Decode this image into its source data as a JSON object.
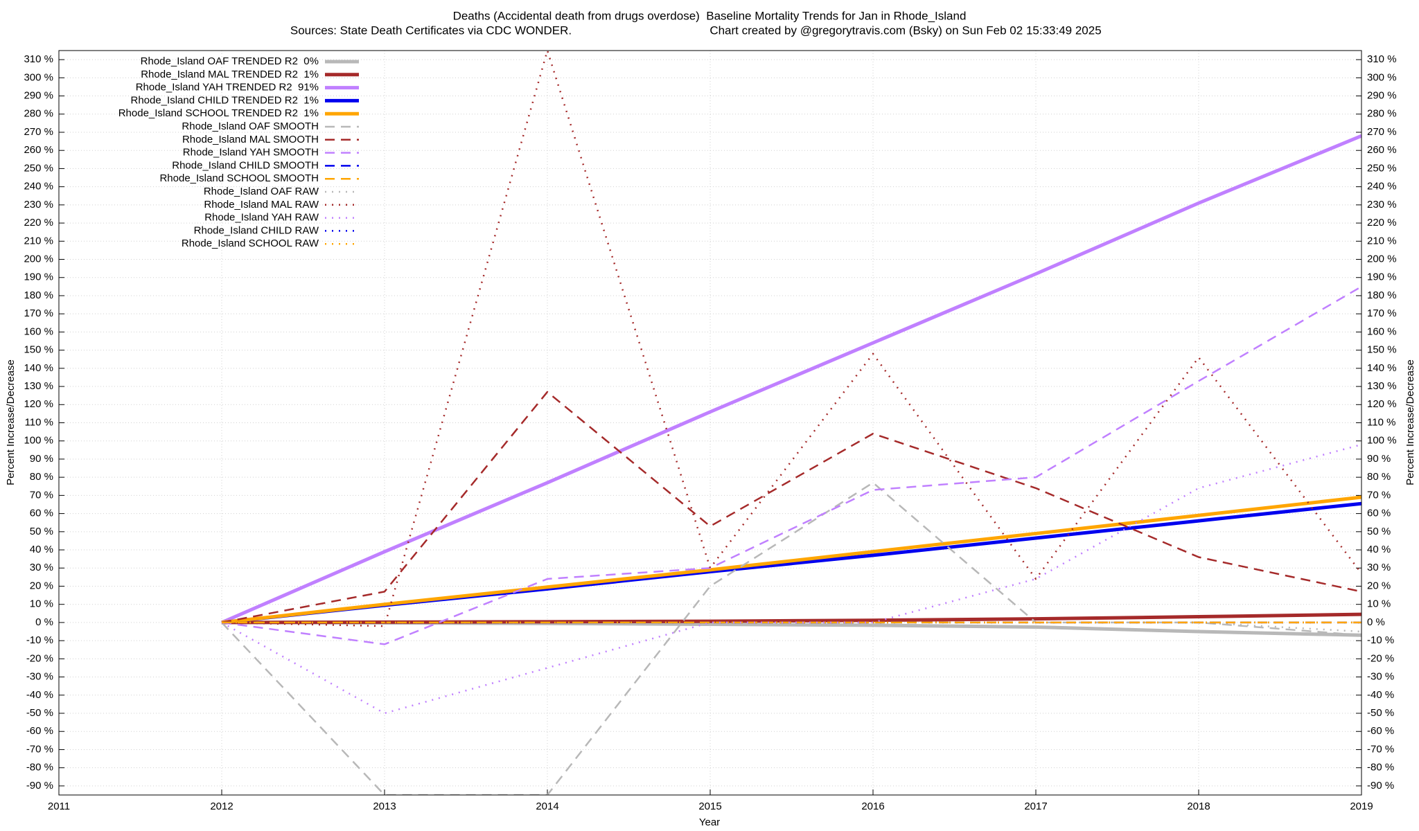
{
  "chart_data": {
    "type": "line",
    "title": "Deaths (Accidental death from drugs overdose)  Baseline Mortality Trends for Jan in Rhode_Island",
    "subtitle": "Sources: State Death Certificates via CDC WONDER.",
    "credit": "Chart created by @gregorytravis.com (Bsky) on Sun Feb 02 15:33:49 2025",
    "xlabel": "Year",
    "ylabel": "Percent Increase/Decrease",
    "y2label": "Percent Increase/Decrease",
    "x": [
      2012,
      2013,
      2014,
      2015,
      2016,
      2017,
      2018,
      2019
    ],
    "xlim": [
      2011,
      2019
    ],
    "xticks": [
      2011,
      2012,
      2013,
      2014,
      2015,
      2016,
      2017,
      2018,
      2019
    ],
    "ylim": [
      -95,
      315
    ],
    "yticks": [
      {
        "value": -90,
        "label": "-90 %"
      },
      {
        "value": -80,
        "label": "-80 %"
      },
      {
        "value": -70,
        "label": "-70 %"
      },
      {
        "value": -60,
        "label": "-60 %"
      },
      {
        "value": -50,
        "label": "-50 %"
      },
      {
        "value": -40,
        "label": "-40 %"
      },
      {
        "value": -30,
        "label": "-30 %"
      },
      {
        "value": -20,
        "label": "-20 %"
      },
      {
        "value": -10,
        "label": "-10 %"
      },
      {
        "value": 0,
        "label": "0 %"
      },
      {
        "value": 10,
        "label": "10 %"
      },
      {
        "value": 20,
        "label": "20 %"
      },
      {
        "value": 30,
        "label": "30 %"
      },
      {
        "value": 40,
        "label": "40 %"
      },
      {
        "value": 50,
        "label": "50 %"
      },
      {
        "value": 60,
        "label": "60 %"
      },
      {
        "value": 70,
        "label": "70 %"
      },
      {
        "value": 80,
        "label": "80 %"
      },
      {
        "value": 90,
        "label": "90 %"
      },
      {
        "value": 100,
        "label": "100 %"
      },
      {
        "value": 110,
        "label": "110 %"
      },
      {
        "value": 120,
        "label": "120 %"
      },
      {
        "value": 130,
        "label": "130 %"
      },
      {
        "value": 140,
        "label": "140 %"
      },
      {
        "value": 150,
        "label": "150 %"
      },
      {
        "value": 160,
        "label": "160 %"
      },
      {
        "value": 170,
        "label": "170 %"
      },
      {
        "value": 180,
        "label": "180 %"
      },
      {
        "value": 190,
        "label": "190 %"
      },
      {
        "value": 200,
        "label": "200 %"
      },
      {
        "value": 210,
        "label": "210 %"
      },
      {
        "value": 220,
        "label": "220 %"
      },
      {
        "value": 230,
        "label": "230 %"
      },
      {
        "value": 240,
        "label": "240 %"
      },
      {
        "value": 250,
        "label": "250 %"
      },
      {
        "value": 260,
        "label": "260 %"
      },
      {
        "value": 270,
        "label": "270 %"
      },
      {
        "value": 280,
        "label": "280 %"
      },
      {
        "value": 290,
        "label": "290 %"
      },
      {
        "value": 300,
        "label": "300 %"
      },
      {
        "value": 310,
        "label": "310 %"
      }
    ],
    "grid": true,
    "legend": "top-left",
    "series": [
      {
        "name": "Rhode_Island OAF TRENDED R2  0%",
        "color": "#b8b8b8",
        "style": "solid",
        "values": [
          0,
          -0.2,
          -0.5,
          -1,
          -1.5,
          -2.5,
          -5,
          -7
        ]
      },
      {
        "name": "Rhode_Island MAL TRENDED R2  1%",
        "color": "#a52a2a",
        "style": "solid",
        "values": [
          0,
          0.2,
          0.4,
          0.7,
          1.2,
          2,
          3.2,
          4.5
        ]
      },
      {
        "name": "Rhode_Island YAH TRENDED R2  91%",
        "color": "#c080ff",
        "style": "solid",
        "values": [
          0,
          39,
          77,
          116,
          154,
          192,
          231,
          268
        ]
      },
      {
        "name": "Rhode_Island CHILD TRENDED R2  1%",
        "color": "#0000ee",
        "style": "solid",
        "values": [
          0,
          9.5,
          18.5,
          28,
          37,
          46.5,
          56,
          65.5
        ]
      },
      {
        "name": "Rhode_Island SCHOOL TRENDED R2  1%",
        "color": "#ffa500",
        "style": "solid",
        "values": [
          0,
          10,
          19.5,
          29,
          39,
          49,
          59,
          69
        ]
      },
      {
        "name": "Rhode_Island OAF SMOOTH",
        "color": "#b8b8b8",
        "style": "dashed",
        "values": [
          0,
          -95,
          -95,
          20,
          77,
          0,
          0,
          -7
        ]
      },
      {
        "name": "Rhode_Island MAL SMOOTH",
        "color": "#a52a2a",
        "style": "dashed",
        "values": [
          0,
          17,
          127,
          53,
          104,
          74,
          36,
          17
        ]
      },
      {
        "name": "Rhode_Island YAH SMOOTH",
        "color": "#c080ff",
        "style": "dashed",
        "values": [
          0,
          -12,
          24,
          30,
          73,
          80,
          133,
          185
        ]
      },
      {
        "name": "Rhode_Island CHILD SMOOTH",
        "color": "#0000ee",
        "style": "dashed",
        "values": [
          0,
          0,
          0,
          0,
          0,
          0,
          0,
          0
        ]
      },
      {
        "name": "Rhode_Island SCHOOL SMOOTH",
        "color": "#ffa500",
        "style": "dashed",
        "values": [
          0,
          0,
          0,
          0,
          0,
          0,
          0,
          0
        ]
      },
      {
        "name": "Rhode_Island OAF RAW",
        "color": "#b8b8b8",
        "style": "dotted",
        "values": [
          0,
          0,
          0,
          0,
          0,
          0,
          0,
          -5
        ]
      },
      {
        "name": "Rhode_Island MAL RAW",
        "color": "#a52a2a",
        "style": "dotted",
        "values": [
          0,
          -2,
          315,
          30,
          148,
          24,
          146,
          27
        ]
      },
      {
        "name": "Rhode_Island YAH RAW",
        "color": "#c080ff",
        "style": "dotted",
        "values": [
          0,
          -50,
          -25,
          0,
          0,
          24,
          74,
          98
        ]
      },
      {
        "name": "Rhode_Island CHILD RAW",
        "color": "#0000ee",
        "style": "dotted",
        "values": [
          0,
          0,
          0,
          0,
          0,
          0,
          0,
          0
        ]
      },
      {
        "name": "Rhode_Island SCHOOL RAW",
        "color": "#ffa500",
        "style": "dotted",
        "values": [
          0,
          0,
          0,
          0,
          0,
          0,
          0,
          0
        ]
      }
    ]
  }
}
